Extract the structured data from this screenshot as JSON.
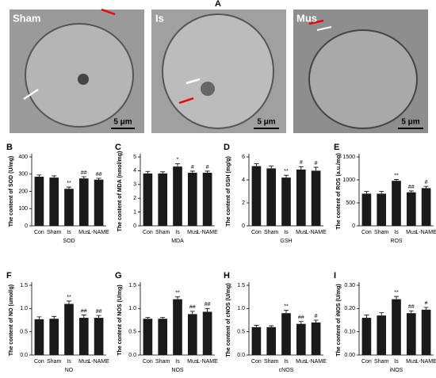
{
  "panel_a": {
    "label": "A",
    "images": [
      {
        "label": "Sham",
        "scale": "5 μm"
      },
      {
        "label": "Is",
        "scale": "5 μm"
      },
      {
        "label": "Mus",
        "scale": "5 μm"
      }
    ]
  },
  "chart_data": [
    {
      "type": "bar",
      "panel": "B",
      "ylabel": "The content of SOD (U/mg)",
      "xlabel": "SOD",
      "color": "#1a1a1a",
      "categories": [
        "Con",
        "Sham",
        "Is",
        "Mus",
        "L-NAME"
      ],
      "values": [
        285,
        280,
        215,
        275,
        268
      ],
      "errors": [
        10,
        10,
        10,
        10,
        8
      ],
      "annotations": [
        null,
        null,
        "**",
        "##",
        "##"
      ],
      "ylim": [
        0,
        400
      ],
      "yticks": [
        0,
        100,
        200,
        300,
        400
      ]
    },
    {
      "type": "bar",
      "panel": "C",
      "ylabel": "The content of MDA (nmol/mg)",
      "xlabel": "MDA",
      "color": "#1a1a1a",
      "categories": [
        "Con",
        "Sham",
        "Is",
        "Mus",
        "L-NAME"
      ],
      "values": [
        3.8,
        3.8,
        4.3,
        3.85,
        3.85
      ],
      "errors": [
        0.15,
        0.12,
        0.2,
        0.12,
        0.12
      ],
      "annotations": [
        null,
        null,
        "*",
        "#",
        "#"
      ],
      "ylim": [
        0,
        5
      ],
      "yticks": [
        0,
        1,
        2,
        3,
        4,
        5
      ]
    },
    {
      "type": "bar",
      "panel": "D",
      "ylabel": "The content of GSH (mg/g)",
      "xlabel": "GSH",
      "color": "#1a1a1a",
      "categories": [
        "Con",
        "Sham",
        "Is",
        "Mus",
        "L-NAME"
      ],
      "values": [
        5.2,
        5.0,
        4.2,
        4.9,
        4.8
      ],
      "errors": [
        0.2,
        0.2,
        0.2,
        0.25,
        0.3
      ],
      "annotations": [
        null,
        null,
        "**",
        "#",
        "#"
      ],
      "ylim": [
        0,
        6
      ],
      "yticks": [
        0,
        2,
        4,
        6
      ]
    },
    {
      "type": "bar",
      "panel": "E",
      "ylabel": "The content of ROS (a.u./mg)",
      "xlabel": "ROS",
      "color": "#1a1a1a",
      "categories": [
        "Con",
        "Sham",
        "Is",
        "Mus",
        "L-NAME"
      ],
      "values": [
        700,
        700,
        980,
        730,
        820
      ],
      "errors": [
        50,
        50,
        30,
        30,
        40
      ],
      "annotations": [
        null,
        null,
        "**",
        "##",
        "#"
      ],
      "ylim": [
        0,
        1500
      ],
      "yticks": [
        0,
        500,
        1000,
        1500
      ]
    },
    {
      "type": "bar",
      "panel": "F",
      "ylabel": "The content of NO (umol/g)",
      "xlabel": "NO",
      "color": "#1a1a1a",
      "categories": [
        "Con",
        "Sham",
        "Is",
        "Mus",
        "L-NAME"
      ],
      "values": [
        0.77,
        0.78,
        1.1,
        0.8,
        0.8
      ],
      "errors": [
        0.05,
        0.05,
        0.06,
        0.06,
        0.05
      ],
      "annotations": [
        null,
        null,
        "**",
        "##",
        "##"
      ],
      "ylim": [
        0,
        1.5
      ],
      "yticks": [
        {
          "value": 0,
          "label": "0.0"
        },
        0.5,
        {
          "value": 1,
          "label": "1.0"
        },
        1.5
      ]
    },
    {
      "type": "bar",
      "panel": "G",
      "ylabel": "The content of NOS (U/mg)",
      "xlabel": "NOS",
      "color": "#1a1a1a",
      "categories": [
        "Con",
        "Sham",
        "Is",
        "Mus",
        "L-NAME"
      ],
      "values": [
        0.78,
        0.78,
        1.2,
        0.88,
        0.93
      ],
      "errors": [
        0.03,
        0.03,
        0.05,
        0.06,
        0.07
      ],
      "annotations": [
        null,
        null,
        "**",
        "##",
        "##"
      ],
      "ylim": [
        0,
        1.5
      ],
      "yticks": [
        {
          "value": 0,
          "label": "0.0"
        },
        0.5,
        {
          "value": 1,
          "label": "1.0"
        },
        1.5
      ]
    },
    {
      "type": "bar",
      "panel": "H",
      "ylabel": "The content of cNOS (U/mg)",
      "xlabel": "cNOS",
      "color": "#1a1a1a",
      "categories": [
        "Con",
        "Sham",
        "Is",
        "Mus",
        "L-NAME"
      ],
      "values": [
        0.6,
        0.6,
        0.9,
        0.67,
        0.7
      ],
      "errors": [
        0.04,
        0.03,
        0.06,
        0.05,
        0.05
      ],
      "annotations": [
        null,
        null,
        "**",
        "##",
        "#"
      ],
      "ylim": [
        0,
        1.5
      ],
      "yticks": [
        {
          "value": 0,
          "label": "0.0"
        },
        0.5,
        {
          "value": 1,
          "label": "1.0"
        },
        1.5
      ]
    },
    {
      "type": "bar",
      "panel": "I",
      "ylabel": "The content of iNOS (U/mg)",
      "xlabel": "iNOS",
      "color": "#1a1a1a",
      "categories": [
        "Con",
        "Sham",
        "Is",
        "Mus",
        "L-NAME"
      ],
      "values": [
        0.16,
        0.17,
        0.24,
        0.18,
        0.195
      ],
      "errors": [
        0.012,
        0.012,
        0.012,
        0.01,
        0.01
      ],
      "annotations": [
        null,
        null,
        "**",
        "##",
        "#"
      ],
      "ylim": [
        0,
        0.3
      ],
      "yticks": [
        {
          "value": 0,
          "label": "0.00"
        },
        {
          "value": 0.1,
          "label": "0.10"
        },
        {
          "value": 0.2,
          "label": "0.20"
        },
        {
          "value": 0.3,
          "label": "0.30"
        }
      ]
    }
  ]
}
